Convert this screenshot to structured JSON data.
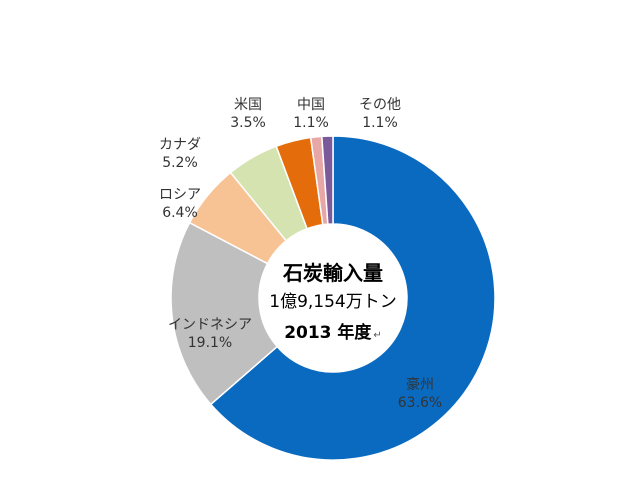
{
  "chart_data": {
    "type": "pie",
    "slices": [
      {
        "label": "豪州",
        "value": 63.6,
        "display": "63.6%",
        "color": "#0A6AC0"
      },
      {
        "label": "インドネシア",
        "value": 19.1,
        "display": "19.1%",
        "color": "#BFBFBF"
      },
      {
        "label": "ロシア",
        "value": 6.4,
        "display": "6.4%",
        "color": "#F8C394"
      },
      {
        "label": "カナダ",
        "value": 5.2,
        "display": "5.2%",
        "color": "#D4E3B0"
      },
      {
        "label": "米国",
        "value": 3.5,
        "display": "3.5%",
        "color": "#E46C0A"
      },
      {
        "label": "中国",
        "value": 1.1,
        "display": "1.1%",
        "color": "#E8A7A7"
      },
      {
        "label": "その他",
        "value": 1.1,
        "display": "1.1%",
        "color": "#7A5A9A"
      }
    ],
    "center_text": {
      "line1": "石炭輸入量",
      "line2": "1億9,154万トン",
      "line3": "2013 年度",
      "line3_mark": "↵"
    }
  }
}
